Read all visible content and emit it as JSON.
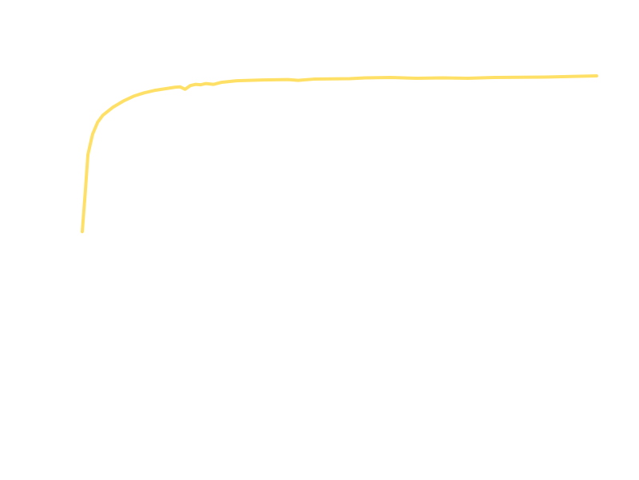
{
  "chart_data": {
    "type": "line",
    "title": "",
    "xlabel": "",
    "ylabel": "",
    "grid": false,
    "legend": "none",
    "series": [
      {
        "color": "#ffe066",
        "points": [
          [
            0.0,
            0.55
          ],
          [
            0.6,
            0.65
          ],
          [
            1.1,
            0.74
          ],
          [
            2.0,
            0.79
          ],
          [
            3.0,
            0.82
          ],
          [
            4.0,
            0.837
          ],
          [
            6.0,
            0.857
          ],
          [
            8.0,
            0.872
          ],
          [
            10.0,
            0.884
          ],
          [
            12.0,
            0.892
          ],
          [
            14.0,
            0.898
          ],
          [
            16.0,
            0.902
          ],
          [
            18.0,
            0.906
          ],
          [
            19.0,
            0.907
          ],
          [
            20.0,
            0.901
          ],
          [
            21.0,
            0.91
          ],
          [
            22.0,
            0.913
          ],
          [
            23.0,
            0.912
          ],
          [
            24.0,
            0.915
          ],
          [
            25.5,
            0.913
          ],
          [
            27.0,
            0.918
          ],
          [
            30.0,
            0.922
          ],
          [
            35.0,
            0.924
          ],
          [
            40.0,
            0.925
          ],
          [
            42.0,
            0.923
          ],
          [
            45.0,
            0.926
          ],
          [
            52.0,
            0.927
          ],
          [
            55.0,
            0.929
          ],
          [
            60.0,
            0.93
          ],
          [
            65.0,
            0.928
          ],
          [
            70.0,
            0.929
          ],
          [
            75.0,
            0.928
          ],
          [
            80.0,
            0.93
          ],
          [
            90.0,
            0.931
          ],
          [
            100.0,
            0.934
          ]
        ]
      }
    ],
    "xlim": [
      0,
      100
    ],
    "ylim": [
      0.55,
      0.934
    ]
  }
}
